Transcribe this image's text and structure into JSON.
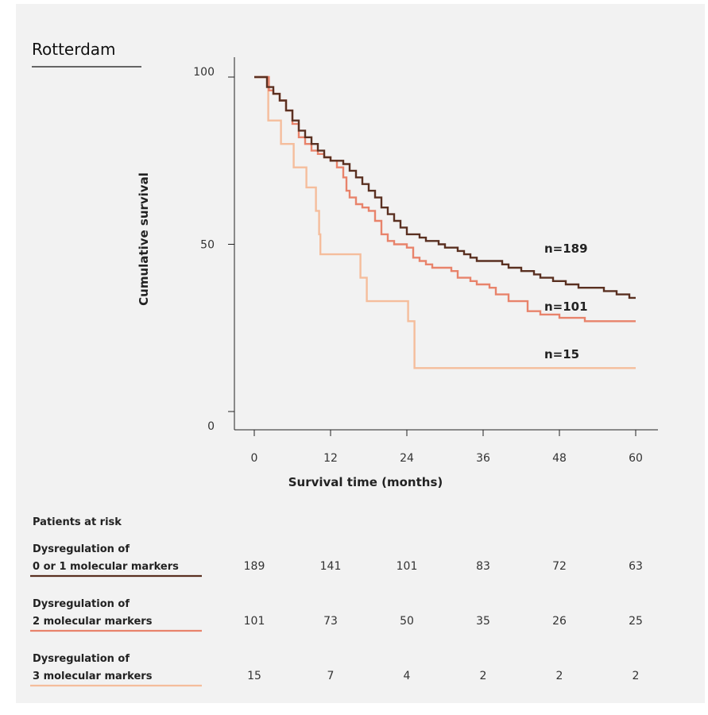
{
  "chart_data": {
    "type": "line",
    "subtype": "kaplan-meier step",
    "title": "Rotterdam",
    "xlabel": "Survival time (months)",
    "ylabel": "Cumulative survival",
    "xlim": [
      0,
      60
    ],
    "ylim": [
      0,
      100
    ],
    "x_ticks": [
      "0",
      "12",
      "24",
      "36",
      "48",
      "60"
    ],
    "y_ticks": [
      "0",
      "50",
      "100"
    ],
    "grid": false,
    "series": [
      {
        "name": "Dysregulation of 0 or 1 molecular markers",
        "end_label": "n=189",
        "color": "#5a3021",
        "points": [
          [
            0,
            100
          ],
          [
            1.5,
            100
          ],
          [
            2,
            97
          ],
          [
            3,
            95
          ],
          [
            4,
            93
          ],
          [
            5,
            90
          ],
          [
            6,
            87
          ],
          [
            7,
            84
          ],
          [
            8,
            82
          ],
          [
            9,
            80
          ],
          [
            10,
            78
          ],
          [
            11,
            76
          ],
          [
            12,
            75
          ],
          [
            14,
            74
          ],
          [
            15,
            72
          ],
          [
            16,
            70
          ],
          [
            17,
            68
          ],
          [
            18,
            66
          ],
          [
            19,
            64
          ],
          [
            20,
            61
          ],
          [
            21,
            59
          ],
          [
            22,
            57
          ],
          [
            23,
            55
          ],
          [
            24,
            53
          ],
          [
            25,
            53
          ],
          [
            26,
            52
          ],
          [
            27,
            51
          ],
          [
            28,
            51
          ],
          [
            29,
            50
          ],
          [
            30,
            49
          ],
          [
            31,
            49
          ],
          [
            32,
            48
          ],
          [
            33,
            47
          ],
          [
            34,
            46
          ],
          [
            35,
            45
          ],
          [
            36,
            45
          ],
          [
            38,
            45
          ],
          [
            39,
            44
          ],
          [
            40,
            43
          ],
          [
            42,
            42
          ],
          [
            43,
            42
          ],
          [
            44,
            41
          ],
          [
            45,
            40
          ],
          [
            46,
            40
          ],
          [
            47,
            39
          ],
          [
            48,
            39
          ],
          [
            49,
            38
          ],
          [
            50,
            38
          ],
          [
            51,
            37
          ],
          [
            53,
            37
          ],
          [
            55,
            36
          ],
          [
            57,
            35
          ],
          [
            59,
            34
          ],
          [
            60,
            34
          ]
        ]
      },
      {
        "name": "Dysregulation of 2 molecular markers",
        "end_label": "n=101",
        "color": "#e8836b",
        "points": [
          [
            0,
            100
          ],
          [
            2,
            100
          ],
          [
            2.3,
            96
          ],
          [
            3,
            95
          ],
          [
            4,
            93
          ],
          [
            5,
            90
          ],
          [
            6,
            86
          ],
          [
            7,
            82
          ],
          [
            8,
            80
          ],
          [
            9,
            78
          ],
          [
            10,
            77
          ],
          [
            11,
            76
          ],
          [
            12,
            75
          ],
          [
            13,
            73
          ],
          [
            14,
            70
          ],
          [
            14.5,
            66
          ],
          [
            15,
            64
          ],
          [
            16,
            62
          ],
          [
            17,
            61
          ],
          [
            18,
            60
          ],
          [
            19,
            57
          ],
          [
            20,
            53
          ],
          [
            21,
            51
          ],
          [
            22,
            50
          ],
          [
            24,
            49
          ],
          [
            25,
            46
          ],
          [
            26,
            45
          ],
          [
            27,
            44
          ],
          [
            28,
            43
          ],
          [
            31,
            42
          ],
          [
            32,
            40
          ],
          [
            34,
            39
          ],
          [
            35,
            38
          ],
          [
            37,
            37
          ],
          [
            38,
            35
          ],
          [
            40,
            33
          ],
          [
            43,
            30
          ],
          [
            45,
            29
          ],
          [
            48,
            28
          ],
          [
            52,
            27
          ],
          [
            60,
            27
          ]
        ]
      },
      {
        "name": "Dysregulation of 3 molecular markers",
        "end_label": "n=15",
        "color": "#f5bd9c",
        "points": [
          [
            0,
            100
          ],
          [
            2,
            100
          ],
          [
            2.2,
            87
          ],
          [
            4,
            87
          ],
          [
            4.2,
            80
          ],
          [
            6,
            80
          ],
          [
            6.2,
            73
          ],
          [
            8,
            73
          ],
          [
            8.2,
            67
          ],
          [
            9.5,
            67
          ],
          [
            9.7,
            60
          ],
          [
            10,
            60
          ],
          [
            10.2,
            53
          ],
          [
            10.4,
            47
          ],
          [
            16.5,
            47
          ],
          [
            16.7,
            40
          ],
          [
            17.5,
            40
          ],
          [
            17.7,
            33
          ],
          [
            24,
            33
          ],
          [
            24.2,
            27
          ],
          [
            25,
            27
          ],
          [
            25.2,
            13
          ],
          [
            60,
            13
          ]
        ]
      }
    ],
    "risk_table": {
      "header": "Patients at risk",
      "time_points": [
        0,
        12,
        24,
        36,
        48,
        60
      ],
      "rows": [
        {
          "label_line1": "Dysregulation of",
          "label_line2": "0 or 1 molecular markers",
          "color": "#5a3021",
          "counts": [
            "189",
            "141",
            "101",
            "83",
            "72",
            "63"
          ]
        },
        {
          "label_line1": "Dysregulation of",
          "label_line2": "2 molecular markers",
          "color": "#e8836b",
          "counts": [
            "101",
            "73",
            "50",
            "35",
            "26",
            "25"
          ]
        },
        {
          "label_line1": "Dysregulation of",
          "label_line2": "3 molecular markers",
          "color": "#f5bd9c",
          "counts": [
            "15",
            "7",
            "4",
            "2",
            "2",
            "2"
          ]
        }
      ]
    }
  }
}
